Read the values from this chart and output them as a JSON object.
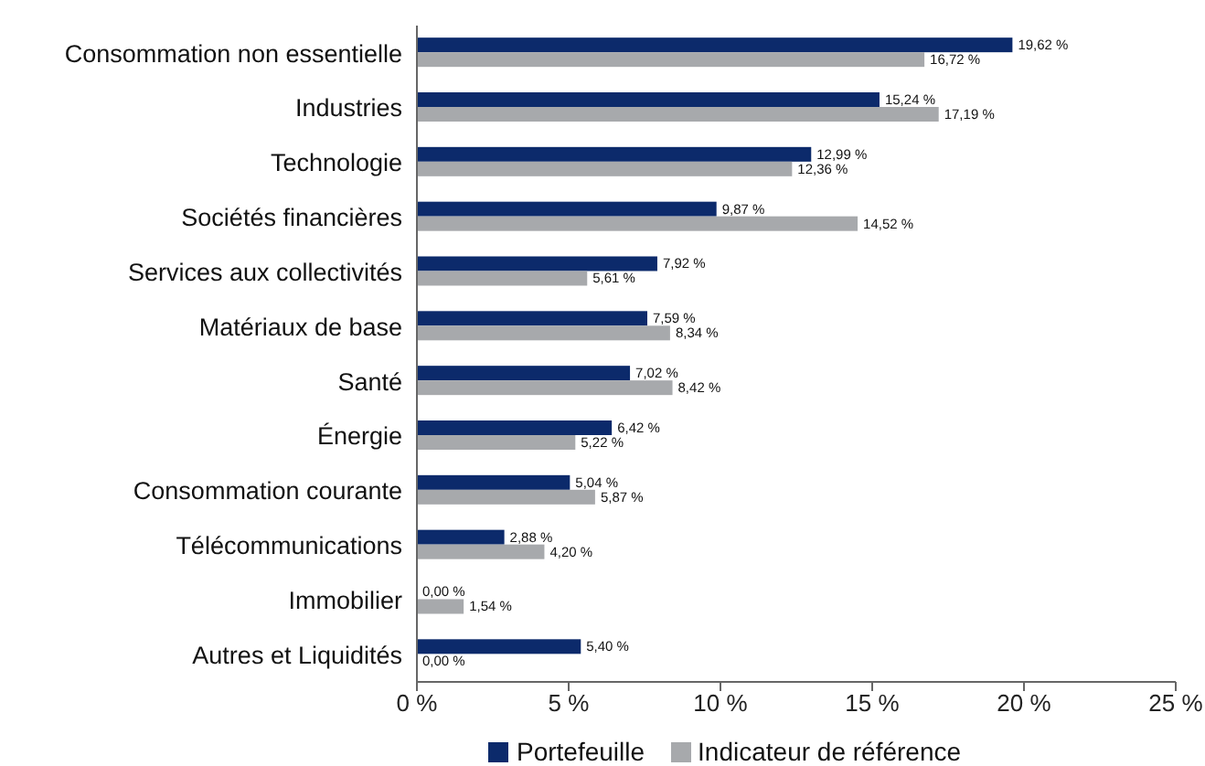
{
  "chart_data": {
    "type": "bar",
    "orientation": "horizontal",
    "categories": [
      "Consommation non essentielle",
      "Industries",
      "Technologie",
      "Sociétés financières",
      "Services aux collectivités",
      "Matériaux de base",
      "Santé",
      "Énergie",
      "Consommation courante",
      "Télécommunications",
      "Immobilier",
      "Autres et Liquidités"
    ],
    "series": [
      {
        "name": "Portefeuille",
        "color": "#0c2a6b",
        "values": [
          19.62,
          15.24,
          12.99,
          9.87,
          7.92,
          7.59,
          7.02,
          6.42,
          5.04,
          2.88,
          0,
          5.4
        ],
        "value_labels": [
          "19,62 %",
          "15,24 %",
          "12,99 %",
          "9,87 %",
          "7,92 %",
          "7,59 %",
          "7,02 %",
          "6,42 %",
          "5,04 %",
          "2,88 %",
          "0,00 %",
          "5,40 %"
        ]
      },
      {
        "name": "Indicateur de référence",
        "color": "#a7a9ac",
        "values": [
          16.72,
          17.19,
          12.36,
          14.52,
          5.61,
          8.34,
          8.42,
          5.22,
          5.87,
          4.2,
          1.54,
          0
        ],
        "value_labels": [
          "16,72 %",
          "17,19 %",
          "12,36 %",
          "14,52 %",
          "5,61 %",
          "8,34 %",
          "8,42 %",
          "5,22 %",
          "5,87 %",
          "4,20 %",
          "1,54 %",
          "0,00 %"
        ]
      }
    ],
    "xlim": [
      0,
      25
    ],
    "xticks": [
      {
        "value": 0,
        "label": "0 %"
      },
      {
        "value": 5,
        "label": "5 %"
      },
      {
        "value": 10,
        "label": "10 %"
      },
      {
        "value": 15,
        "label": "15 %"
      },
      {
        "value": 20,
        "label": "20 %"
      },
      {
        "value": 25,
        "label": "25 %"
      }
    ],
    "grid": false,
    "legend": "bottom"
  }
}
